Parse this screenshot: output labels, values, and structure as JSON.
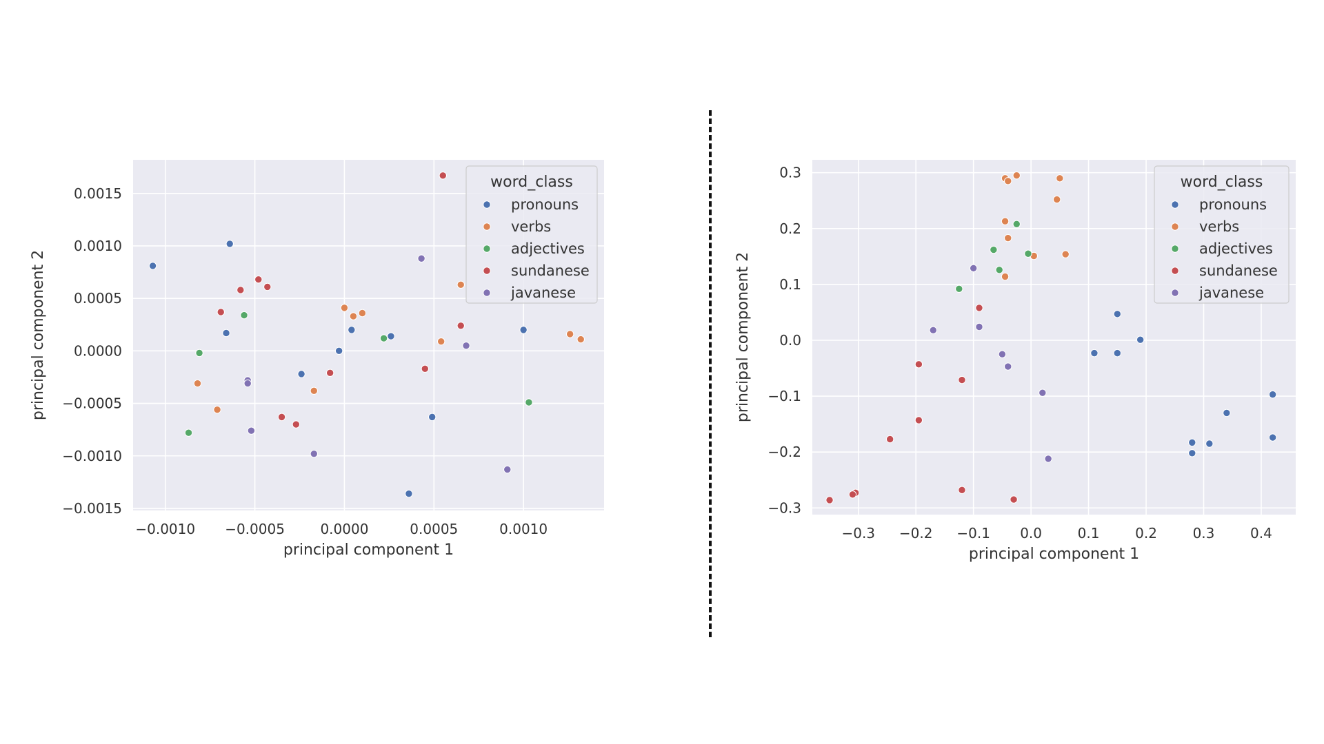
{
  "colors": {
    "pronouns": "#4c72b0",
    "verbs": "#dd8452",
    "adjectives": "#55a868",
    "sundanese": "#c44e52",
    "javanese": "#8172b3",
    "panel_bg": "#eaeaf2",
    "grid": "#ffffff",
    "text": "#333333"
  },
  "chart_data": [
    {
      "type": "scatter",
      "title": "",
      "xlabel": "principal component 1",
      "ylabel": "principal component 2",
      "xlim": [
        -0.00118,
        0.00145
      ],
      "ylim": [
        -0.00152,
        0.00182
      ],
      "xticks": [
        -0.001,
        -0.0005,
        0.0,
        0.0005,
        0.001
      ],
      "xtick_labels": [
        "−0.0010",
        "−0.0005",
        "0.0000",
        "0.0005",
        "0.0010"
      ],
      "yticks": [
        -0.0015,
        -0.001,
        -0.0005,
        0.0,
        0.0005,
        0.001,
        0.0015
      ],
      "ytick_labels": [
        "−0.0015",
        "−0.0010",
        "−0.0005",
        "0.0000",
        "0.0005",
        "0.0010",
        "0.0015"
      ],
      "legend": {
        "title": "word_class",
        "position": "top-right",
        "entries": [
          "pronouns",
          "verbs",
          "adjectives",
          "sundanese",
          "javanese"
        ]
      },
      "series": [
        {
          "name": "pronouns",
          "points": [
            [
              -0.00107,
              0.00081
            ],
            [
              -0.00064,
              0.00102
            ],
            [
              -0.00066,
              0.00017
            ],
            [
              -0.00024,
              -0.00022
            ],
            [
              -3e-05,
              0.0
            ],
            [
              4e-05,
              0.0002
            ],
            [
              0.00026,
              0.00014
            ],
            [
              0.00049,
              -0.00063
            ],
            [
              0.00036,
              -0.00136
            ],
            [
              0.001,
              0.0002
            ]
          ]
        },
        {
          "name": "verbs",
          "points": [
            [
              -0.00082,
              -0.00031
            ],
            [
              -0.00071,
              -0.00056
            ],
            [
              -0.00017,
              -0.00038
            ],
            [
              0.0,
              0.00041
            ],
            [
              5e-05,
              0.00033
            ],
            [
              0.0001,
              0.00036
            ],
            [
              0.00054,
              9e-05
            ],
            [
              0.00065,
              0.00063
            ],
            [
              0.00126,
              0.00016
            ],
            [
              0.00132,
              0.00011
            ]
          ]
        },
        {
          "name": "adjectives",
          "points": [
            [
              -0.00081,
              -2e-05
            ],
            [
              -0.00087,
              -0.00078
            ],
            [
              -0.00056,
              0.00034
            ],
            [
              0.00022,
              0.00012
            ],
            [
              0.00103,
              -0.00049
            ]
          ]
        },
        {
          "name": "sundanese",
          "points": [
            [
              -0.00069,
              0.00037
            ],
            [
              -0.00058,
              0.00058
            ],
            [
              -0.00048,
              0.00068
            ],
            [
              -0.00043,
              0.00061
            ],
            [
              -0.00035,
              -0.00063
            ],
            [
              -0.00027,
              -0.0007
            ],
            [
              -8e-05,
              -0.00021
            ],
            [
              0.00045,
              -0.00017
            ],
            [
              0.00055,
              0.00167
            ],
            [
              0.00065,
              0.00024
            ]
          ]
        },
        {
          "name": "javanese",
          "points": [
            [
              -0.00054,
              -0.00028
            ],
            [
              -0.00054,
              -0.00031
            ],
            [
              -0.00052,
              -0.00076
            ],
            [
              -0.00017,
              -0.00098
            ],
            [
              0.00043,
              0.00088
            ],
            [
              0.00068,
              5e-05
            ],
            [
              0.00091,
              -0.00113
            ]
          ]
        }
      ]
    },
    {
      "type": "scatter",
      "title": "",
      "xlabel": "principal component 1",
      "ylabel": "principal component 2",
      "xlim": [
        -0.38,
        0.46
      ],
      "ylim": [
        -0.312,
        0.323
      ],
      "xticks": [
        -0.3,
        -0.2,
        -0.1,
        0.0,
        0.1,
        0.2,
        0.3,
        0.4
      ],
      "xtick_labels": [
        "−0.3",
        "−0.2",
        "−0.1",
        "0.0",
        "0.1",
        "0.2",
        "0.3",
        "0.4"
      ],
      "yticks": [
        -0.3,
        -0.2,
        -0.1,
        0.0,
        0.1,
        0.2,
        0.3
      ],
      "ytick_labels": [
        "−0.3",
        "−0.2",
        "−0.1",
        "0.0",
        "0.1",
        "0.2",
        "0.3"
      ],
      "legend": {
        "title": "word_class",
        "position": "top-right",
        "entries": [
          "pronouns",
          "verbs",
          "adjectives",
          "sundanese",
          "javanese"
        ]
      },
      "series": [
        {
          "name": "pronouns",
          "points": [
            [
              0.11,
              -0.023
            ],
            [
              0.15,
              -0.023
            ],
            [
              0.15,
              0.047
            ],
            [
              0.19,
              0.001
            ],
            [
              0.28,
              -0.183
            ],
            [
              0.28,
              -0.202
            ],
            [
              0.31,
              -0.185
            ],
            [
              0.34,
              -0.13
            ],
            [
              0.42,
              -0.097
            ],
            [
              0.42,
              -0.174
            ]
          ]
        },
        {
          "name": "verbs",
          "points": [
            [
              -0.045,
              0.29
            ],
            [
              -0.04,
              0.285
            ],
            [
              -0.025,
              0.295
            ],
            [
              0.05,
              0.29
            ],
            [
              0.045,
              0.252
            ],
            [
              -0.045,
              0.213
            ],
            [
              -0.04,
              0.183
            ],
            [
              0.005,
              0.151
            ],
            [
              0.06,
              0.154
            ],
            [
              -0.045,
              0.114
            ]
          ]
        },
        {
          "name": "adjectives",
          "points": [
            [
              -0.025,
              0.208
            ],
            [
              -0.065,
              0.162
            ],
            [
              -0.005,
              0.155
            ],
            [
              -0.055,
              0.126
            ],
            [
              -0.125,
              0.092
            ]
          ]
        },
        {
          "name": "sundanese",
          "points": [
            [
              -0.09,
              0.058
            ],
            [
              -0.195,
              -0.043
            ],
            [
              -0.12,
              -0.071
            ],
            [
              -0.195,
              -0.143
            ],
            [
              -0.245,
              -0.177
            ],
            [
              -0.12,
              -0.268
            ],
            [
              -0.03,
              -0.285
            ],
            [
              -0.305,
              -0.273
            ],
            [
              -0.31,
              -0.276
            ],
            [
              -0.35,
              -0.286
            ]
          ]
        },
        {
          "name": "javanese",
          "points": [
            [
              -0.1,
              0.129
            ],
            [
              -0.17,
              0.018
            ],
            [
              -0.09,
              0.024
            ],
            [
              -0.05,
              -0.025
            ],
            [
              -0.04,
              -0.047
            ],
            [
              0.02,
              -0.094
            ],
            [
              0.03,
              -0.212
            ]
          ]
        }
      ]
    }
  ]
}
